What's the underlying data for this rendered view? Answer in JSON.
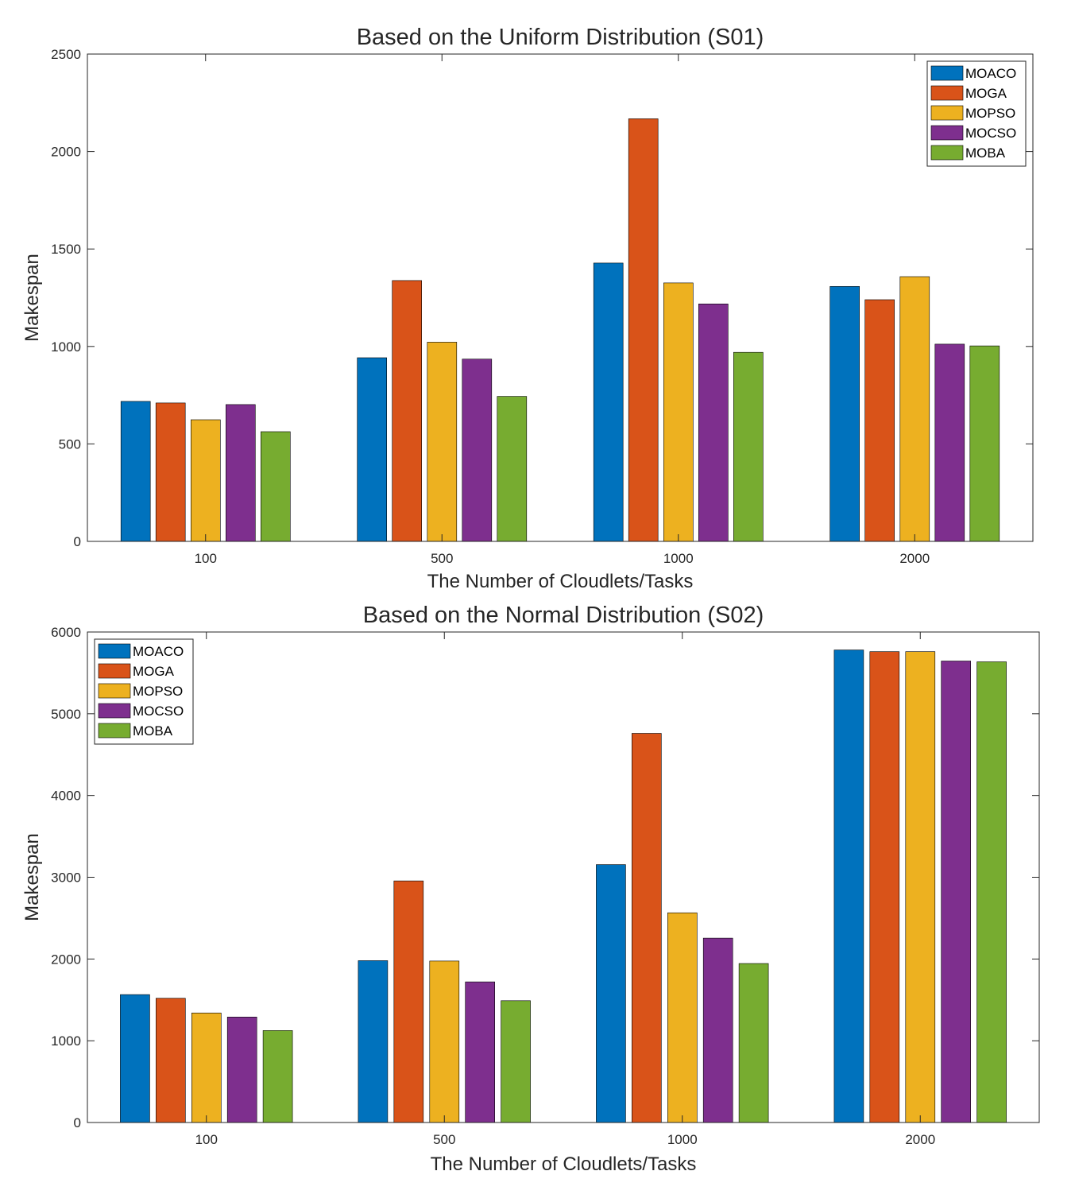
{
  "chart_data": [
    {
      "type": "bar",
      "title": "Based on the Uniform Distribution (S01)",
      "xlabel": "The Number of Cloudlets/Tasks",
      "ylabel": "Makespan",
      "categories": [
        "100",
        "500",
        "1000",
        "2000"
      ],
      "ylim": [
        0,
        2500
      ],
      "yticks": [
        0,
        500,
        1000,
        1500,
        2000,
        2500
      ],
      "legend_position": "top-right",
      "grid": false,
      "series": [
        {
          "name": "MOACO",
          "values": [
            718,
            942,
            1428,
            1308
          ]
        },
        {
          "name": "MOGA",
          "values": [
            710,
            1338,
            2168,
            1240
          ]
        },
        {
          "name": "MOPSO",
          "values": [
            624,
            1022,
            1326,
            1358
          ]
        },
        {
          "name": "MOCSO",
          "values": [
            702,
            935,
            1218,
            1012
          ]
        },
        {
          "name": "MOBA",
          "values": [
            563,
            744,
            970,
            1003
          ]
        }
      ]
    },
    {
      "type": "bar",
      "title": "Based on the Normal Distribution (S02)",
      "xlabel": "The Number of Cloudlets/Tasks",
      "ylabel": "Makespan",
      "categories": [
        "100",
        "500",
        "1000",
        "2000"
      ],
      "ylim": [
        0,
        6000
      ],
      "yticks": [
        0,
        1000,
        2000,
        3000,
        4000,
        5000,
        6000
      ],
      "legend_position": "top-left",
      "grid": false,
      "series": [
        {
          "name": "MOACO",
          "values": [
            1565,
            1980,
            3155,
            5780
          ]
        },
        {
          "name": "MOGA",
          "values": [
            1520,
            2955,
            4760,
            5760
          ]
        },
        {
          "name": "MOPSO",
          "values": [
            1340,
            1975,
            2565,
            5760
          ]
        },
        {
          "name": "MOCSO",
          "values": [
            1290,
            1720,
            2255,
            5645
          ]
        },
        {
          "name": "MOBA",
          "values": [
            1125,
            1490,
            1945,
            5635
          ]
        }
      ]
    }
  ],
  "series_colors": [
    "#0072BD",
    "#D95319",
    "#EDB120",
    "#7E2F8E",
    "#77AC30"
  ]
}
